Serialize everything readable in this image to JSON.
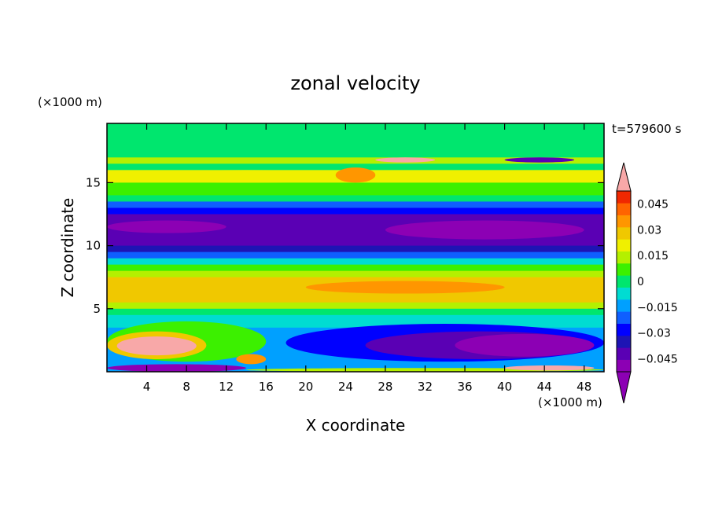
{
  "chart_data": {
    "type": "heatmap",
    "title": "zonal velocity",
    "xlabel": "X coordinate",
    "ylabel": "Z coordinate",
    "x_unit": "(×1000 m)",
    "y_unit": "(×1000 m)",
    "time_label": "t=579600 s",
    "x_ticks": [
      4,
      8,
      12,
      16,
      20,
      24,
      28,
      32,
      36,
      40,
      44,
      48
    ],
    "y_ticks": [
      5,
      10,
      15
    ],
    "xlim": [
      0,
      50
    ],
    "ylim": [
      0,
      19.7
    ],
    "colorbar": {
      "min": -0.0525,
      "max": 0.0525,
      "step": 0.0075,
      "tick_values": [
        0.045,
        0.03,
        0.015,
        0,
        -0.015,
        -0.03,
        -0.045
      ],
      "tick_labels": [
        "0.045",
        "0.03",
        "0.015",
        "0",
        "−0.015",
        "−0.03",
        "−0.045"
      ],
      "colors": [
        "#8c00b4",
        "#5a00b4",
        "#1e14b4",
        "#0000ff",
        "#0f5fff",
        "#00a0ff",
        "#00dcd2",
        "#00e66e",
        "#3cf000",
        "#b4f000",
        "#f0f000",
        "#f0c800",
        "#ff9600",
        "#ff6400",
        "#f02800"
      ],
      "under_color": "#8c00b4",
      "over_color": "#f8a8a8"
    },
    "bands": [
      {
        "z": [
          18.0,
          19.7
        ],
        "value": 0.0
      },
      {
        "z": [
          17.0,
          18.0
        ],
        "value": 0.004
      },
      {
        "z": [
          16.5,
          17.0
        ],
        "value": 0.022
      },
      {
        "z": [
          16.0,
          16.5
        ],
        "value": 0.006
      },
      {
        "z": [
          15.0,
          16.0
        ],
        "value": 0.024
      },
      {
        "z": [
          14.0,
          15.0
        ],
        "value": 0.014
      },
      {
        "z": [
          13.5,
          14.0
        ],
        "value": 0.0
      },
      {
        "z": [
          13.0,
          13.5
        ],
        "value": -0.018
      },
      {
        "z": [
          12.5,
          13.0
        ],
        "value": -0.028
      },
      {
        "z": [
          11.0,
          12.5
        ],
        "value": -0.042
      },
      {
        "z": [
          10.0,
          11.0
        ],
        "value": -0.038
      },
      {
        "z": [
          9.5,
          10.0
        ],
        "value": -0.032
      },
      {
        "z": [
          9.0,
          9.5
        ],
        "value": -0.02
      },
      {
        "z": [
          8.5,
          9.0
        ],
        "value": -0.006
      },
      {
        "z": [
          8.0,
          8.5
        ],
        "value": 0.01
      },
      {
        "z": [
          7.5,
          8.0
        ],
        "value": 0.022
      },
      {
        "z": [
          5.5,
          7.5
        ],
        "value": 0.034
      },
      {
        "z": [
          5.0,
          5.5
        ],
        "value": 0.02
      },
      {
        "z": [
          4.5,
          5.0
        ],
        "value": 0.004
      },
      {
        "z": [
          3.5,
          4.5
        ],
        "value": -0.004
      },
      {
        "z": [
          0.0,
          3.5
        ],
        "value": -0.01
      }
    ],
    "features": [
      {
        "x": [
          0,
          50
        ],
        "z": [
          6.0,
          7.5
        ],
        "value": 0.036
      },
      {
        "x": [
          20,
          40
        ],
        "z": [
          6.2,
          7.2
        ],
        "value": 0.042
      },
      {
        "x": [
          0,
          28
        ],
        "z": [
          15.0,
          16.0
        ],
        "value": 0.026
      },
      {
        "x": [
          23,
          27
        ],
        "z": [
          15.0,
          16.2
        ],
        "value": 0.042
      },
      {
        "x": [
          0,
          50
        ],
        "z": [
          10.3,
          11.5
        ],
        "value": -0.044
      },
      {
        "x": [
          0,
          12
        ],
        "z": [
          11.0,
          12.0
        ],
        "value": -0.05
      },
      {
        "x": [
          28,
          48
        ],
        "z": [
          10.5,
          12.0
        ],
        "value": -0.05
      },
      {
        "x": [
          27,
          33
        ],
        "z": [
          16.6,
          17.0
        ],
        "value": 0.06
      },
      {
        "x": [
          40,
          47
        ],
        "z": [
          16.6,
          17.0
        ],
        "value": -0.045
      },
      {
        "x": [
          18,
          50
        ],
        "z": [
          0.8,
          3.8
        ],
        "value": -0.03
      },
      {
        "x": [
          26,
          49
        ],
        "z": [
          1.0,
          3.2
        ],
        "value": -0.04
      },
      {
        "x": [
          35,
          49
        ],
        "z": [
          1.2,
          3.0
        ],
        "value": -0.05
      },
      {
        "x": [
          0,
          16
        ],
        "z": [
          0.8,
          4.0
        ],
        "value": 0.012
      },
      {
        "x": [
          0,
          10
        ],
        "z": [
          1.0,
          3.2
        ],
        "value": 0.035
      },
      {
        "x": [
          1,
          9
        ],
        "z": [
          1.3,
          2.8
        ],
        "value": 0.06
      },
      {
        "x": [
          13,
          16
        ],
        "z": [
          0.6,
          1.4
        ],
        "value": 0.04
      },
      {
        "x": [
          0,
          14
        ],
        "z": [
          0.0,
          0.6
        ],
        "value": -0.05
      },
      {
        "x": [
          14,
          50
        ],
        "z": [
          0.0,
          0.3
        ],
        "value": 0.02
      },
      {
        "x": [
          40,
          49
        ],
        "z": [
          0.1,
          0.5
        ],
        "value": 0.06
      }
    ]
  }
}
